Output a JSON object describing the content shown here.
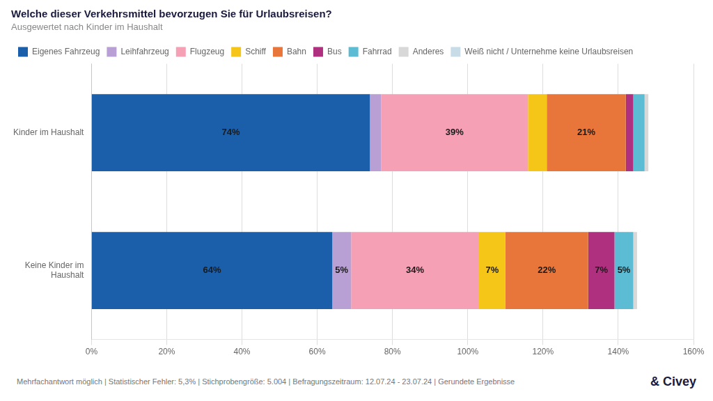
{
  "chart_data": {
    "type": "bar",
    "orientation": "horizontal",
    "stacked": true,
    "title": "Welche dieser Verkehrsmittel bevorzugen Sie für Urlaubsreisen?",
    "subtitle": "Ausgewertet nach Kinder im Haushalt",
    "annotations": [
      "Mehrfachantwort möglich | Statistischer Fehler: 5,3% | Stichprobengröße: 5.004 | Befragungszeitraum: 12.07.24 - 23.07.24 | Gerundete Ergebnisse",
      "& Civey"
    ],
    "categories": [
      "Keine Kinder im\nHaushalt",
      "Kinder im Haushalt"
    ],
    "series": [
      {
        "name": "Eigenes Fahrzeug",
        "color": "#1b5faa",
        "values": [
          64,
          74
        ],
        "value_labels": [
          "64%",
          "74%"
        ]
      },
      {
        "name": "Leihfahrzeug",
        "color": "#b89fd4",
        "values": [
          5,
          3
        ],
        "value_labels": [
          "5%",
          null
        ]
      },
      {
        "name": "Flugzeug",
        "color": "#f5a0b5",
        "values": [
          34,
          39
        ],
        "value_labels": [
          "34%",
          "39%"
        ]
      },
      {
        "name": "Schiff",
        "color": "#f5c518",
        "values": [
          7,
          5
        ],
        "value_labels": [
          "7%",
          null
        ]
      },
      {
        "name": "Bahn",
        "color": "#e8763a",
        "values": [
          22,
          21
        ],
        "value_labels": [
          "22%",
          "21%"
        ]
      },
      {
        "name": "Bus",
        "color": "#b03080",
        "values": [
          7,
          2
        ],
        "value_labels": [
          "7%",
          null
        ]
      },
      {
        "name": "Fahrrad",
        "color": "#5bbcd4",
        "values": [
          5,
          3
        ],
        "value_labels": [
          "5%",
          null
        ]
      },
      {
        "name": "Anderes",
        "color": "#d8d8d8",
        "values": [
          1,
          1
        ],
        "value_labels": [
          null,
          null
        ]
      },
      {
        "name": "Weiß nicht / Unternehme keine Urlaubsreisen",
        "color": "#c8dce8",
        "values": [
          0,
          0
        ],
        "value_labels": [
          null,
          null
        ]
      }
    ],
    "xlim": [
      0,
      160
    ],
    "xticks": [
      {
        "value": 0,
        "label": "0%"
      },
      {
        "value": 20,
        "label": "20%"
      },
      {
        "value": 40,
        "label": "40%"
      },
      {
        "value": 60,
        "label": "60%"
      },
      {
        "value": 80,
        "label": "80%"
      },
      {
        "value": 100,
        "label": "100%"
      },
      {
        "value": 120,
        "label": "120%"
      },
      {
        "value": 140,
        "label": "140%"
      },
      {
        "value": 160,
        "label": "160%"
      }
    ],
    "grid": true,
    "legend": "top",
    "data_labels": true
  }
}
